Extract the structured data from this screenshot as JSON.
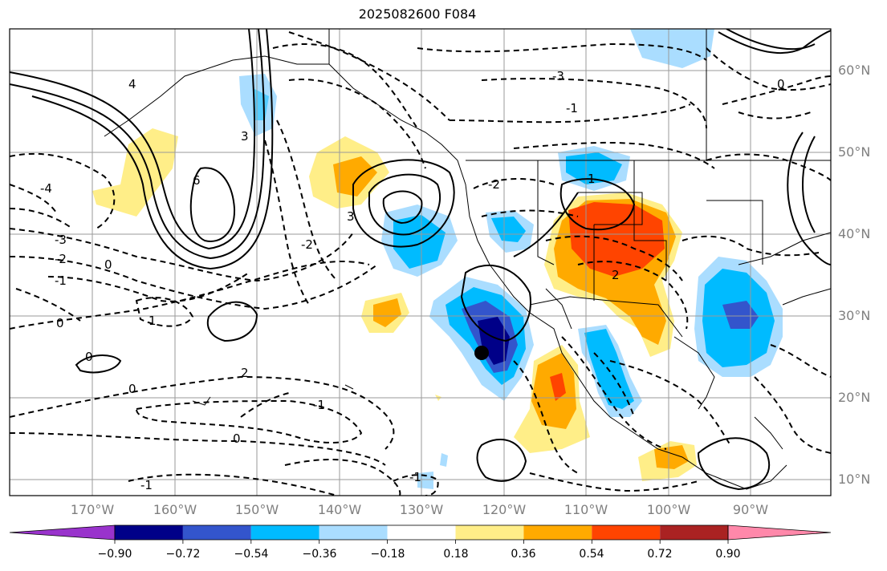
{
  "title": "2025082600 F084",
  "lat_labels": [
    "60°N",
    "50°N",
    "40°N",
    "30°N",
    "20°N",
    "10°N"
  ],
  "lon_labels": [
    "170°W",
    "160°W",
    "150°W",
    "140°W",
    "130°W",
    "120°W",
    "110°W",
    "100°W",
    "90°W"
  ],
  "colorbar": {
    "ticks": [
      "−0.90",
      "−0.72",
      "−0.54",
      "−0.36",
      "−0.18",
      "0.18",
      "0.36",
      "0.54",
      "0.72",
      "0.90"
    ],
    "colors": [
      "#9933cc",
      "#000088",
      "#3355cc",
      "#00bbff",
      "#aaddff",
      "#ffffff",
      "#ffee88",
      "#ffaa00",
      "#ff4400",
      "#aa2222",
      "#ff88aa"
    ]
  },
  "contour_labels": [
    "-4",
    "-3",
    "-2",
    "-1",
    "0",
    "1",
    "2",
    "3",
    "6",
    "-1",
    "-2",
    "0",
    "1",
    "-1",
    "0",
    "0",
    "-1",
    "-2",
    "0",
    "-1",
    "2",
    "3",
    "4",
    "-3",
    "0"
  ]
}
